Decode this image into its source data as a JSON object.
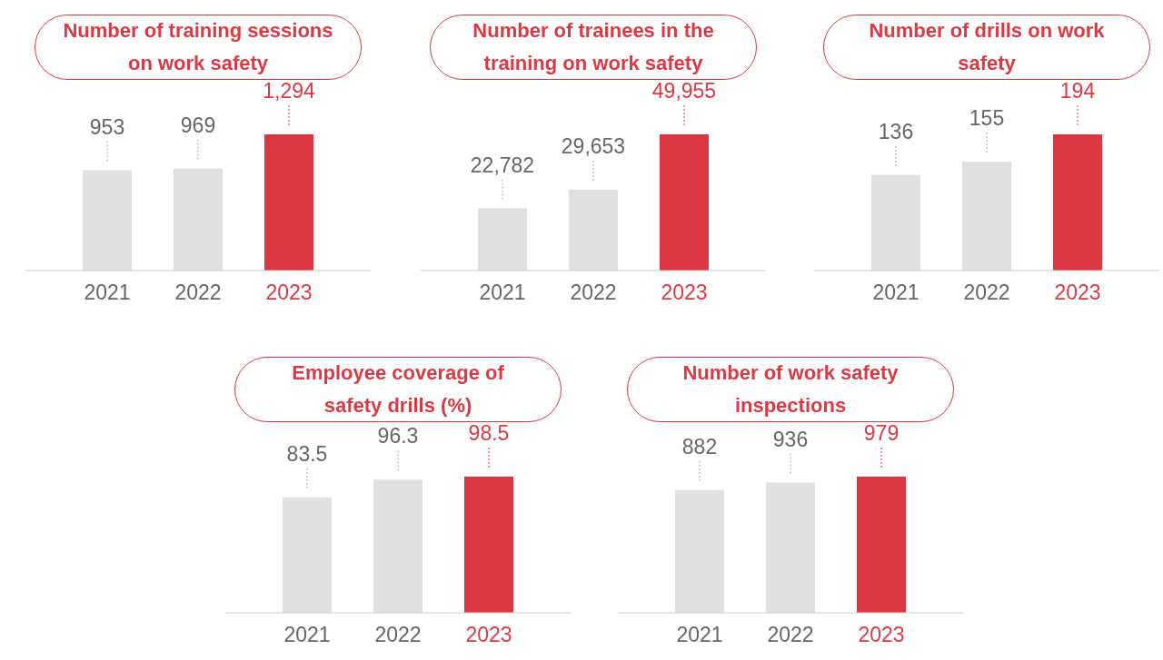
{
  "chart_data": [
    {
      "type": "bar",
      "title": "Number of training sessions on work safety",
      "categories": [
        "2021",
        "2022",
        "2023"
      ],
      "values": [
        953,
        969,
        1294
      ],
      "colors": [
        "#e0e0df",
        "#e0e0df",
        "#da3743"
      ],
      "data_labels": true,
      "value_labels": [
        "953",
        "969",
        "1,294"
      ]
    },
    {
      "type": "bar",
      "title": "Number of trainees in the training on work safety",
      "categories": [
        "2021",
        "2022",
        "2023"
      ],
      "values": [
        22782,
        29653,
        49955
      ],
      "colors": [
        "#e0e0df",
        "#e0e0df",
        "#da3743"
      ],
      "data_labels": true,
      "value_labels": [
        "22,782",
        "29,653",
        "49,955"
      ]
    },
    {
      "type": "bar",
      "title": "Number of drills on work safety",
      "categories": [
        "2021",
        "2022",
        "2023"
      ],
      "values": [
        136,
        155,
        194
      ],
      "colors": [
        "#e0e0df",
        "#e0e0df",
        "#da3743"
      ],
      "data_labels": true,
      "value_labels": [
        "136",
        "155",
        "194"
      ]
    },
    {
      "type": "bar",
      "title": "Employee coverage of safety drills (%)",
      "categories": [
        "2021",
        "2022",
        "2023"
      ],
      "values": [
        83.5,
        96.3,
        98.5
      ],
      "colors": [
        "#e0e0df",
        "#e0e0df",
        "#da3743"
      ],
      "data_labels": true,
      "value_labels": [
        "83.5",
        "96.3",
        "98.5"
      ]
    },
    {
      "type": "bar",
      "title": "Number of work safety inspections",
      "categories": [
        "2021",
        "2022",
        "2023"
      ],
      "values": [
        882,
        936,
        979
      ],
      "colors": [
        "#e0e0df",
        "#e0e0df",
        "#da3743"
      ],
      "data_labels": true,
      "value_labels": [
        "882",
        "936",
        "979"
      ]
    }
  ]
}
